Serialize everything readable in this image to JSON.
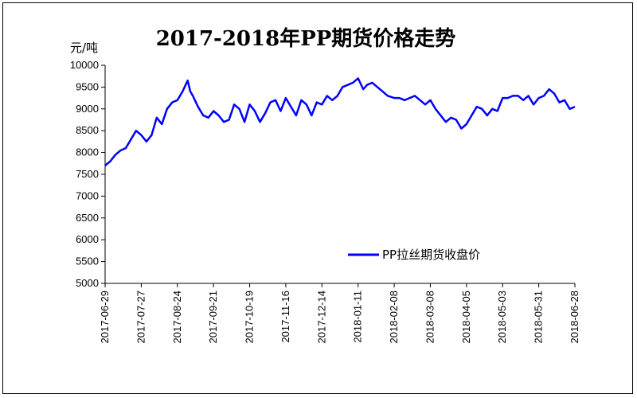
{
  "chart_data": {
    "type": "line",
    "title": "2017-2018年PP期货价格走势",
    "ylabel": "元/吨",
    "xlabel": "",
    "ylim": [
      5000,
      10000
    ],
    "yticks": [
      5000,
      5500,
      6000,
      6500,
      7000,
      7500,
      8000,
      8500,
      9000,
      9500,
      10000
    ],
    "xticks": [
      "2017-06-29",
      "2017-07-27",
      "2017-08-24",
      "2017-09-21",
      "2017-10-19",
      "2017-11-16",
      "2017-12-14",
      "2018-01-11",
      "2018-02-08",
      "2018-03-08",
      "2018-04-05",
      "2018-05-03",
      "2018-05-31",
      "2018-06-28"
    ],
    "grid": false,
    "legend_position": "lower-right",
    "series": [
      {
        "name": "PP拉丝期货收盘价",
        "color": "#0000FF",
        "x": [
          "2017-06-29",
          "2017-07-03",
          "2017-07-07",
          "2017-07-11",
          "2017-07-15",
          "2017-07-19",
          "2017-07-23",
          "2017-07-27",
          "2017-07-31",
          "2017-08-04",
          "2017-08-08",
          "2017-08-12",
          "2017-08-16",
          "2017-08-20",
          "2017-08-24",
          "2017-08-28",
          "2017-09-01",
          "2017-09-03",
          "2017-09-05",
          "2017-09-09",
          "2017-09-13",
          "2017-09-17",
          "2017-09-21",
          "2017-09-25",
          "2017-09-29",
          "2017-10-03",
          "2017-10-07",
          "2017-10-11",
          "2017-10-15",
          "2017-10-19",
          "2017-10-23",
          "2017-10-27",
          "2017-10-31",
          "2017-11-04",
          "2017-11-08",
          "2017-11-12",
          "2017-11-16",
          "2017-11-20",
          "2017-11-24",
          "2017-11-28",
          "2017-12-02",
          "2017-12-06",
          "2017-12-10",
          "2017-12-14",
          "2017-12-18",
          "2017-12-22",
          "2017-12-26",
          "2017-12-30",
          "2018-01-03",
          "2018-01-07",
          "2018-01-11",
          "2018-01-15",
          "2018-01-18",
          "2018-01-22",
          "2018-01-26",
          "2018-01-30",
          "2018-02-03",
          "2018-02-08",
          "2018-02-12",
          "2018-02-16",
          "2018-02-20",
          "2018-02-24",
          "2018-02-28",
          "2018-03-04",
          "2018-03-08",
          "2018-03-12",
          "2018-03-16",
          "2018-03-20",
          "2018-03-24",
          "2018-03-28",
          "2018-04-01",
          "2018-04-05",
          "2018-04-09",
          "2018-04-13",
          "2018-04-17",
          "2018-04-21",
          "2018-04-25",
          "2018-04-29",
          "2018-05-03",
          "2018-05-07",
          "2018-05-11",
          "2018-05-15",
          "2018-05-19",
          "2018-05-23",
          "2018-05-27",
          "2018-05-31",
          "2018-06-04",
          "2018-06-08",
          "2018-06-12",
          "2018-06-16",
          "2018-06-20",
          "2018-06-24",
          "2018-06-28"
        ],
        "values": [
          7700,
          7800,
          7950,
          8050,
          8100,
          8300,
          8500,
          8400,
          8250,
          8400,
          8800,
          8650,
          9000,
          9150,
          9200,
          9400,
          9650,
          9400,
          9300,
          9050,
          8850,
          8800,
          8950,
          8850,
          8700,
          8750,
          9100,
          9000,
          8700,
          9100,
          8950,
          8700,
          8900,
          9150,
          9200,
          8950,
          9250,
          9050,
          8850,
          9200,
          9100,
          8850,
          9150,
          9100,
          9300,
          9200,
          9300,
          9500,
          9550,
          9600,
          9700,
          9450,
          9550,
          9600,
          9500,
          9400,
          9300,
          9250,
          9250,
          9200,
          9250,
          9300,
          9200,
          9100,
          9200,
          9000,
          8850,
          8700,
          8800,
          8750,
          8550,
          8650,
          8850,
          9050,
          9000,
          8850,
          9000,
          8950,
          9250,
          9250,
          9300,
          9300,
          9200,
          9300,
          9100,
          9250,
          9300,
          9450,
          9350,
          9150,
          9200,
          9000,
          9050
        ]
      }
    ]
  }
}
